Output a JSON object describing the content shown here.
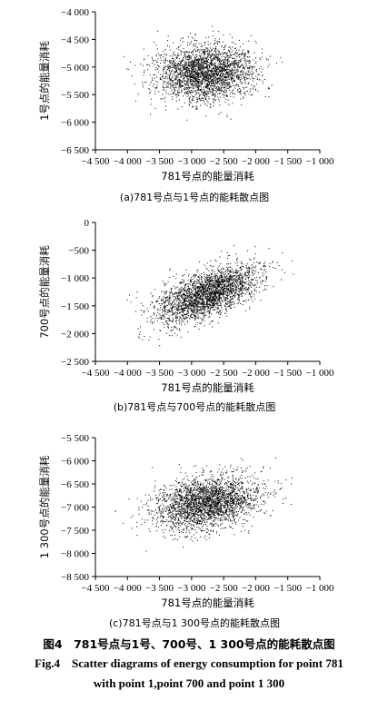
{
  "figure": {
    "caption_cn": "图4　781号点与1号、700号、1 300号点的能耗散点图",
    "caption_en_line1": "Fig.4　Scatter diagrams of energy consumption for point 781",
    "caption_en_line2": "with point 1,point 700 and point 1 300"
  },
  "chart_data": [
    {
      "type": "scatter",
      "caption": "(a)781号点与1号点的能耗散点图",
      "xlabel": "781号点的能量消耗",
      "ylabel": "1号点的能量消耗",
      "xlim": [
        -4500,
        -1000
      ],
      "ylim": [
        -6500,
        -4000
      ],
      "xticks": [
        -4500,
        -4000,
        -3500,
        -3000,
        -2500,
        -2000,
        -1500,
        -1000
      ],
      "yticks": [
        -6500,
        -6000,
        -5500,
        -5000,
        -4500,
        -4000
      ],
      "xtick_labels": [
        "−4 500",
        "−4 000",
        "−3 500",
        "−3 000",
        "−2 500",
        "−2 000",
        "−1 500",
        "−1 000"
      ],
      "ytick_labels": [
        "−6 500",
        "−6 000",
        "−5 500",
        "−5 000",
        "−4 500",
        "−4 000"
      ],
      "cluster": {
        "mean_x": -2800,
        "mean_y": -5100,
        "sd_x": 380,
        "sd_y": 250,
        "corr": 0.05,
        "x_range": [
          -4200,
          -1500
        ],
        "y_range": [
          -6000,
          -4250
        ]
      }
    },
    {
      "type": "scatter",
      "caption": "(b)781号点与700号点的能耗散点图",
      "xlabel": "781号点的能量消耗",
      "ylabel": "700号点的能量消耗",
      "xlim": [
        -4500,
        -1000
      ],
      "ylim": [
        -2500,
        0
      ],
      "xticks": [
        -4500,
        -4000,
        -3500,
        -3000,
        -2500,
        -2000,
        -1500,
        -1000
      ],
      "yticks": [
        -2500,
        -2000,
        -1500,
        -1000,
        -500,
        0
      ],
      "xtick_labels": [
        "−4 500",
        "−4 000",
        "−3 500",
        "−3 000",
        "−2 500",
        "−2 000",
        "−1 500",
        "−1 000"
      ],
      "ytick_labels": [
        "−2 500",
        "−2 000",
        "−1 500",
        "−1 000",
        "−500",
        "0"
      ],
      "cluster": {
        "mean_x": -2750,
        "mean_y": -1280,
        "sd_x": 400,
        "sd_y": 260,
        "corr": 0.6,
        "x_range": [
          -4200,
          -1400
        ],
        "y_range": [
          -2250,
          -400
        ]
      }
    },
    {
      "type": "scatter",
      "caption": "(c)781号点与1 300号点的能耗散点图",
      "xlabel": "781号点的能量消耗",
      "ylabel": "1 300号点的能量消耗",
      "xlim": [
        -4500,
        -1000
      ],
      "ylim": [
        -8500,
        -5500
      ],
      "xticks": [
        -4500,
        -4000,
        -3500,
        -3000,
        -2500,
        -2000,
        -1500,
        -1000
      ],
      "yticks": [
        -8500,
        -8000,
        -7500,
        -7000,
        -6500,
        -6000,
        -5500
      ],
      "xtick_labels": [
        "−4 500",
        "−4 000",
        "−3 500",
        "−3 000",
        "−2 500",
        "−2 000",
        "−1 500",
        "−1 000"
      ],
      "ytick_labels": [
        "−8 500",
        "−8 000",
        "−7 500",
        "−7 000",
        "−6 500",
        "−6 000",
        "−5 500"
      ],
      "cluster": {
        "mean_x": -2750,
        "mean_y": -6900,
        "sd_x": 400,
        "sd_y": 290,
        "corr": 0.3,
        "x_range": [
          -4200,
          -1400
        ],
        "y_range": [
          -7950,
          -5850
        ]
      }
    }
  ]
}
